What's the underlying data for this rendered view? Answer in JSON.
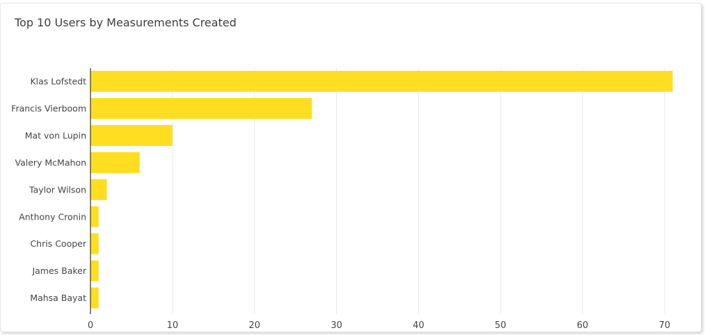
{
  "chart_data": {
    "type": "bar",
    "orientation": "horizontal",
    "title": "Top 10 Users by Measurements Created",
    "xlabel": "",
    "ylabel": "",
    "categories": [
      "Klas Lofstedt",
      "Francis Vierboom",
      "Mat von Lupin",
      "Valery McMahon",
      "Taylor Wilson",
      "Anthony Cronin",
      "Chris Cooper",
      "James Baker",
      "Mahsa Bayat"
    ],
    "values": [
      71,
      27,
      10,
      6,
      2,
      1,
      1,
      1,
      1
    ],
    "xlim": [
      0,
      74
    ],
    "xticks": [
      0,
      10,
      20,
      30,
      40,
      50,
      60,
      70
    ],
    "grid": "vertical",
    "legend": "none",
    "bar_color": "#FFDE21",
    "grid_color": "#eaeaea",
    "axis_color": "#333333",
    "label_color": "#444444"
  }
}
